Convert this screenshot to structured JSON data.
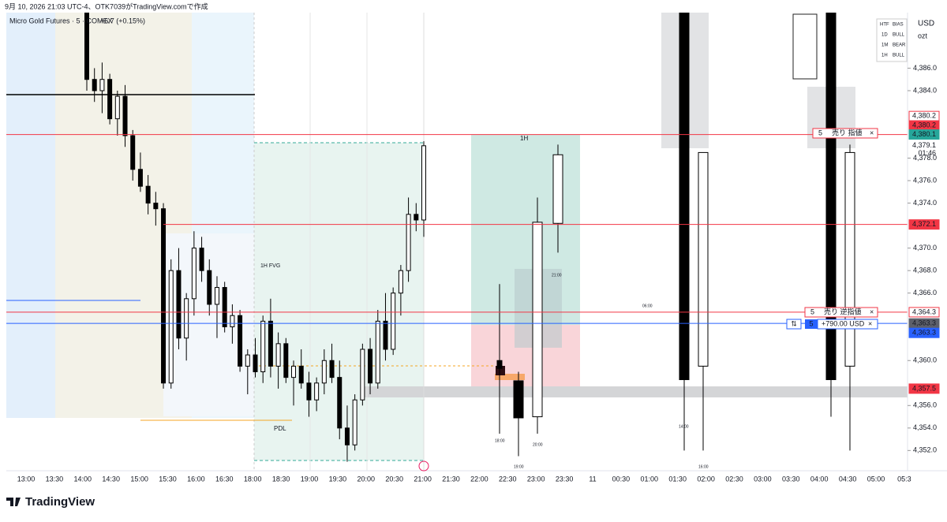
{
  "header": {
    "watermark": "9月 10, 2026 21:03 UTC-4、OTK7039がTradingView.comで作成",
    "symbol": "Micro Gold Futures · 5 · COMEX",
    "change": "+6.7 (+0.15%)"
  },
  "bias_table": {
    "header": [
      "HTF",
      "BIAS"
    ],
    "rows": [
      [
        "1D",
        "BULL"
      ],
      [
        "1M",
        "BEAR"
      ],
      [
        "1H",
        "BULL"
      ]
    ]
  },
  "chart_data": {
    "type": "candlestick",
    "ohlc": [
      [
        4391,
        4392,
        4384,
        4385
      ],
      [
        4385,
        4386,
        4383,
        4384
      ],
      [
        4384,
        4386.5,
        4382,
        4385
      ],
      [
        4385,
        4385.5,
        4381,
        4381.5
      ],
      [
        4381.5,
        4384,
        4380,
        4383.5
      ],
      [
        4383.5,
        4384.5,
        4379,
        4380
      ],
      [
        4380,
        4380.5,
        4376,
        4377
      ],
      [
        4377,
        4378.5,
        4375,
        4375.5
      ],
      [
        4375.5,
        4376.5,
        4373,
        4374
      ],
      [
        4374,
        4375,
        4372,
        4373.5
      ],
      [
        4373.5,
        4374,
        4357.5,
        4358
      ],
      [
        4358,
        4369,
        4357.5,
        4368
      ],
      [
        4368,
        4370,
        4361,
        4362
      ],
      [
        4362,
        4366,
        4360,
        4365.5
      ],
      [
        4365.5,
        4371.5,
        4364,
        4370
      ],
      [
        4370,
        4371,
        4367,
        4368
      ],
      [
        4368,
        4369,
        4364,
        4365
      ],
      [
        4365,
        4367.5,
        4362,
        4366.5
      ],
      [
        4366.5,
        4367,
        4362.5,
        4363
      ],
      [
        4363,
        4365,
        4361.5,
        4364
      ],
      [
        4364,
        4364.5,
        4359,
        4359.5
      ],
      [
        4359.5,
        4361,
        4357,
        4360.5
      ],
      [
        4360.5,
        4362,
        4358.5,
        4359
      ],
      [
        4359,
        4364,
        4358,
        4363.5
      ],
      [
        4363.5,
        4365.5,
        4358.5,
        4359.5
      ],
      [
        4359.5,
        4362.5,
        4357.5,
        4361.5
      ],
      [
        4361.5,
        4362,
        4358,
        4358.5
      ],
      [
        4358.5,
        4360,
        4356,
        4359.5
      ],
      [
        4359.5,
        4361,
        4357.5,
        4358
      ],
      [
        4358,
        4359,
        4355,
        4356.5
      ],
      [
        4356.5,
        4358.5,
        4355.5,
        4358
      ],
      [
        4358,
        4361,
        4357,
        4360
      ],
      [
        4360,
        4361.5,
        4358,
        4358.5
      ],
      [
        4358.5,
        4360,
        4353,
        4354
      ],
      [
        4354,
        4356,
        4351,
        4352.5
      ],
      [
        4352.5,
        4357,
        4352,
        4356.5
      ],
      [
        4356.5,
        4361.5,
        4356,
        4361
      ],
      [
        4361,
        4362,
        4357,
        4358
      ],
      [
        4358,
        4364.5,
        4357.5,
        4363.5
      ],
      [
        4363.5,
        4366,
        4360,
        4361
      ],
      [
        4361,
        4366.5,
        4360.5,
        4366
      ],
      [
        4366,
        4368.5,
        4364,
        4368
      ],
      [
        4368,
        4374.5,
        4367,
        4373
      ],
      [
        4373,
        4374,
        4371.5,
        4372.5
      ],
      [
        4372.5,
        4379.5,
        4371,
        4379.1
      ]
    ],
    "htf_ohlc": [
      [
        4360,
        4366.8,
        4353.5,
        4359.3
      ],
      [
        4358.2,
        4359,
        4351.5,
        4354.9
      ],
      [
        4355,
        4374.5,
        4353.5,
        4372.3
      ],
      [
        4372.2,
        4379.2,
        4369.6,
        4378.3
      ],
      [
        4391,
        4393,
        4352,
        4358.3
      ],
      [
        4359.5,
        4378.5,
        4352,
        4378.5
      ],
      [
        4391,
        4393,
        4355,
        4358.3
      ],
      [
        4359.5,
        4379.2,
        4352,
        4378.5
      ]
    ],
    "ylim": [
      4350.2,
      4390.8
    ],
    "yticks": [
      {
        "value": 4352,
        "label": "4,352.0"
      },
      {
        "value": 4354,
        "label": "4,354.0"
      },
      {
        "value": 4356,
        "label": "4,356.0"
      },
      {
        "value": 4360,
        "label": "4,360.0"
      },
      {
        "value": 4366,
        "label": "4,366.0"
      },
      {
        "value": 4368,
        "label": "4,368.0"
      },
      {
        "value": 4370,
        "label": "4,370.0"
      },
      {
        "value": 4374,
        "label": "4,374.0"
      },
      {
        "value": 4376,
        "label": "4,376.0"
      },
      {
        "value": 4378,
        "label": "4,378.0"
      },
      {
        "value": 4384,
        "label": "4,384.0"
      },
      {
        "value": 4386,
        "label": "4,386.0"
      }
    ],
    "xlabels": [
      "13:00",
      "13:30",
      "14:00",
      "14:30",
      "15:00",
      "15:30",
      "16:00",
      "16:30",
      "18:00",
      "18:30",
      "19:00",
      "19:30",
      "20:00",
      "20:30",
      "21:00",
      "21:30",
      "22:00",
      "22:30",
      "23:00",
      "23:30",
      "11",
      "00:30",
      "01:00",
      "01:30",
      "02:00",
      "02:30",
      "03:00",
      "03:30",
      "04:00",
      "04:30",
      "05:00",
      "05:3"
    ]
  },
  "price_axis": {
    "currency": "USD",
    "unit": "ozt",
    "last": {
      "value": 4379.1,
      "label": "4,379.1"
    },
    "countdown": "01:46"
  },
  "price_tags": [
    {
      "value": 4380.2,
      "label": "4,380.2"
    },
    {
      "value": 4380.2,
      "label": "4,380.2"
    },
    {
      "value": 4380.1,
      "label": "4,380.1"
    },
    {
      "value": 4372.1,
      "label": "4,372.1"
    },
    {
      "value": 4364.3,
      "label": "4,364.3"
    },
    {
      "value": 4363.3,
      "label": "4,363.3"
    },
    {
      "value": 4363.3,
      "label": "4,363.3"
    },
    {
      "value": 4357.5,
      "label": "4,357.5"
    }
  ],
  "orders": [
    {
      "qty": "5",
      "label": "売り 指値",
      "close": "×"
    },
    {
      "qty": "5",
      "label": "売り 逆指値",
      "close": "×"
    }
  ],
  "position": {
    "icon": "⇅",
    "qty": "5",
    "pnl": "+790.00 USD",
    "close": "×"
  },
  "annotations": [
    "1H FVG",
    "PDL",
    "1H",
    "21:00",
    "06:00",
    "18:00",
    "19:00",
    "20:00",
    "14:00",
    "16:00"
  ],
  "footer": {
    "logo": "TradingView"
  }
}
